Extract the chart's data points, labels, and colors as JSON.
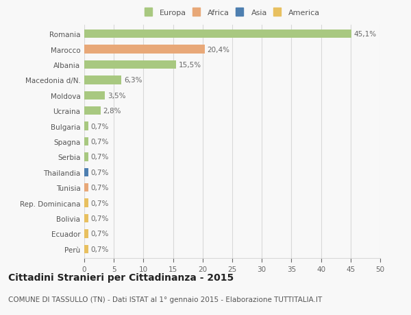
{
  "countries": [
    "Romania",
    "Marocco",
    "Albania",
    "Macedonia d/N.",
    "Moldova",
    "Ucraina",
    "Bulgaria",
    "Spagna",
    "Serbia",
    "Thailandia",
    "Tunisia",
    "Rep. Dominicana",
    "Bolivia",
    "Ecuador",
    "Perù"
  ],
  "values": [
    45.1,
    20.4,
    15.5,
    6.3,
    3.5,
    2.8,
    0.7,
    0.7,
    0.7,
    0.7,
    0.7,
    0.7,
    0.7,
    0.7,
    0.7
  ],
  "labels": [
    "45,1%",
    "20,4%",
    "15,5%",
    "6,3%",
    "3,5%",
    "2,8%",
    "0,7%",
    "0,7%",
    "0,7%",
    "0,7%",
    "0,7%",
    "0,7%",
    "0,7%",
    "0,7%",
    "0,7%"
  ],
  "continents": [
    "Europa",
    "Africa",
    "Europa",
    "Europa",
    "Europa",
    "Europa",
    "Europa",
    "Europa",
    "Europa",
    "Asia",
    "Africa",
    "America",
    "America",
    "America",
    "America"
  ],
  "continent_colors": {
    "Europa": "#a8c880",
    "Africa": "#e8a878",
    "Asia": "#4e7fb0",
    "America": "#e8c060"
  },
  "legend_items": [
    {
      "label": "Europa",
      "color": "#a8c880"
    },
    {
      "label": "Africa",
      "color": "#e8a878"
    },
    {
      "label": "Asia",
      "color": "#4e7fb0"
    },
    {
      "label": "America",
      "color": "#e8c060"
    }
  ],
  "xlim": [
    0,
    50
  ],
  "xticks": [
    0,
    5,
    10,
    15,
    20,
    25,
    30,
    35,
    40,
    45,
    50
  ],
  "title": "Cittadini Stranieri per Cittadinanza - 2015",
  "subtitle": "COMUNE DI TASSULLO (TN) - Dati ISTAT al 1° gennaio 2015 - Elaborazione TUTTITALIA.IT",
  "background_color": "#f8f8f8",
  "grid_color": "#d8d8d8",
  "bar_height": 0.55,
  "label_fontsize": 7.5,
  "tick_fontsize": 7.5,
  "title_fontsize": 10,
  "subtitle_fontsize": 7.5
}
